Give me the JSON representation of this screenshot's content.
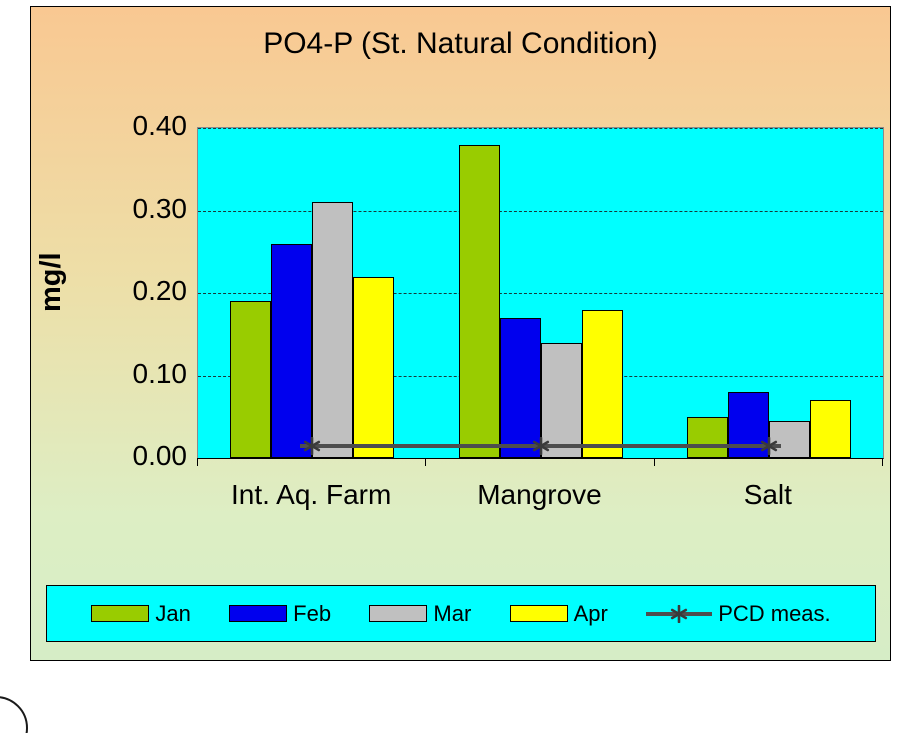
{
  "chart_data": {
    "type": "bar",
    "title": "PO4-P (St. Natural Condition)",
    "ylabel": "mg/l",
    "xlabel": "",
    "ylim": [
      0,
      0.4
    ],
    "yticks": [
      {
        "label": "0.40",
        "value": 0.4
      },
      {
        "label": "0.30",
        "value": 0.3
      },
      {
        "label": "0.20",
        "value": 0.2
      },
      {
        "label": "0.10",
        "value": 0.1
      },
      {
        "label": "0.00",
        "value": 0.0
      }
    ],
    "categories": [
      "Int. Aq. Farm",
      "Mangrove",
      "Salt"
    ],
    "series": [
      {
        "name": "Jan",
        "color": "#99cc00",
        "values": [
          0.19,
          0.38,
          0.05
        ]
      },
      {
        "name": "Feb",
        "color": "#0000ee",
        "values": [
          0.26,
          0.17,
          0.08
        ]
      },
      {
        "name": "Mar",
        "color": "#c0c0c0",
        "values": [
          0.31,
          0.14,
          0.045
        ]
      },
      {
        "name": "Apr",
        "color": "#ffff00",
        "values": [
          0.22,
          0.18,
          0.07
        ]
      }
    ],
    "line_series": {
      "name": "PCD meas.",
      "value": 0.015,
      "color": "#4d4d4d",
      "marker": "asterisk"
    },
    "grid": {
      "horizontal": true,
      "style": "dashed"
    },
    "legend_position": "bottom",
    "plot_background": "#00ffff",
    "chart_background_gradient": [
      "#f9c892",
      "#d6edc6"
    ]
  }
}
